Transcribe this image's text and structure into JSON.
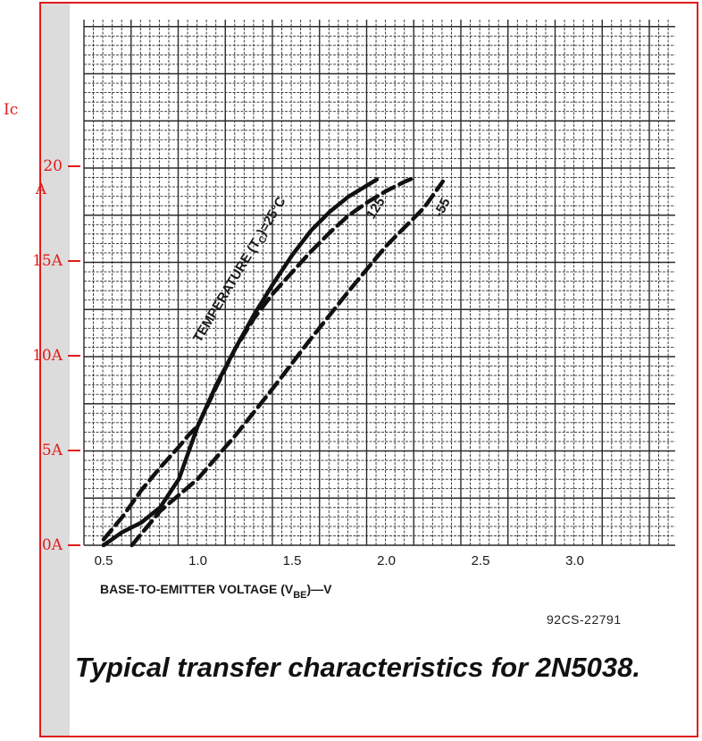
{
  "chart_data": {
    "type": "line",
    "title": "Typical transfer characteristics for 2N5038.",
    "figure_code": "92CS-22791",
    "xlabel": "BASE-TO-EMITTER VOLTAGE (V",
    "xlabel_sub": "BE",
    "xlabel_tail": ")—V",
    "x_ticks": [
      "0.5",
      "1.0",
      "1.5",
      "2.0",
      "2.5",
      "3.0"
    ],
    "xlim": [
      0.4,
      3.45
    ],
    "ylim": [
      0,
      20
    ],
    "grid": true,
    "annotation": "TEMPERATURE (T",
    "annotation_sub": "C",
    "annotation_tail": ")=25°C",
    "series": [
      {
        "name": "25",
        "style": "solid",
        "x": [
          0.5,
          0.6,
          0.7,
          0.8,
          0.9,
          1.0,
          1.1,
          1.2,
          1.3,
          1.4,
          1.5,
          1.6,
          1.7,
          1.8,
          1.9,
          1.95
        ],
        "y": [
          0.0,
          0.7,
          1.2,
          2.0,
          3.5,
          6.3,
          8.5,
          10.4,
          12.2,
          13.8,
          15.3,
          16.6,
          17.6,
          18.4,
          19.0,
          19.3
        ]
      },
      {
        "name": "125",
        "style": "dashed",
        "x": [
          0.5,
          0.6,
          0.7,
          0.8,
          0.9,
          0.95,
          1.0,
          1.1,
          1.2,
          1.3,
          1.4,
          1.5,
          1.6,
          1.7,
          1.8,
          1.9,
          2.0,
          2.1,
          2.15
        ],
        "y": [
          0.3,
          1.5,
          2.9,
          4.1,
          5.2,
          5.8,
          6.3,
          8.4,
          10.4,
          12.0,
          13.3,
          14.4,
          15.5,
          16.5,
          17.4,
          18.1,
          18.7,
          19.2,
          19.4
        ]
      },
      {
        "name": "-55",
        "style": "dashed",
        "x": [
          0.65,
          0.8,
          1.0,
          1.2,
          1.4,
          1.6,
          1.8,
          2.0,
          2.2,
          2.3
        ],
        "y": [
          0.0,
          1.8,
          3.5,
          5.8,
          8.3,
          10.9,
          13.4,
          15.8,
          17.8,
          19.2
        ]
      }
    ],
    "curve_labels": [
      "125",
      "-55"
    ]
  },
  "handwritten": {
    "ylabel": "Ic",
    "y_ticks": [
      {
        "value": 20,
        "label": "20",
        "unit": "A"
      },
      {
        "value": 15,
        "label": "15A"
      },
      {
        "value": 10,
        "label": "10A"
      },
      {
        "value": 5,
        "label": "5A"
      },
      {
        "value": 0,
        "label": "0A"
      }
    ],
    "color": "#e11b1b"
  },
  "colors": {
    "ink": "#1a1a1a",
    "annotation": "#e11b1b",
    "frame": "#e11b1b"
  }
}
